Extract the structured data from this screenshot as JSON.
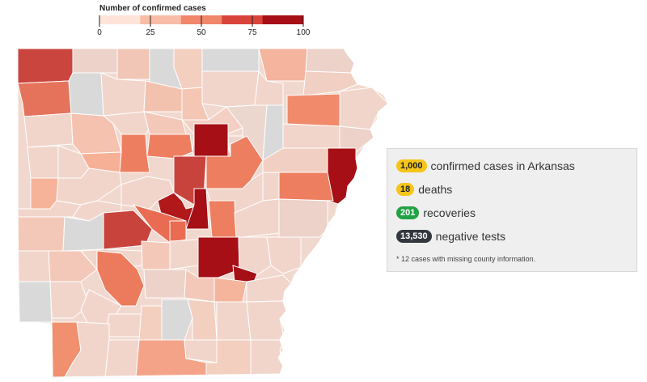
{
  "legend": {
    "title": "Number of confirmed cases",
    "ticks": [
      "0",
      "25",
      "50",
      "75",
      "100"
    ],
    "colors": [
      "#fde3d8",
      "#f8bca7",
      "#f0866a",
      "#d9443a",
      "#a50f15"
    ]
  },
  "stats": {
    "confirmed_value": "1,000",
    "confirmed_label": "confirmed cases in Arkansas",
    "deaths_value": "18",
    "deaths_label": "deaths",
    "recoveries_value": "201",
    "recoveries_label": "recoveries",
    "negative_value": "13,530",
    "negative_label": "negative tests",
    "note": "* 12 cases with missing county information."
  },
  "map_colors": {
    "none": "#d9d9d9",
    "border": "#ffffff"
  }
}
